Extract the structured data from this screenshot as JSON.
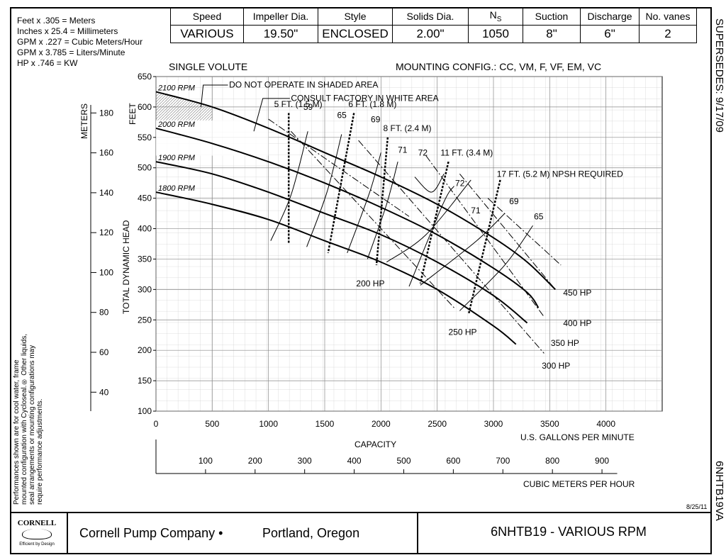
{
  "conversions": [
    "Feet x .305 = Meters",
    "Inches x 25.4 = Millimeters",
    "GPM x .227 = Cubic Meters/Hour",
    "GPM x 3.785 = Liters/Minute",
    "HP x .746 = KW"
  ],
  "spec": {
    "headers": [
      "Speed",
      "Impeller Dia.",
      "Style",
      "Solids Dia.",
      "NS",
      "Suction",
      "Discharge",
      "No. vanes"
    ],
    "values": [
      "VARIOUS",
      "19.50\"",
      "ENCLOSED",
      "2.00\"",
      "1050",
      "8\"",
      "6\"",
      "2"
    ]
  },
  "supersedes": "SUPERSEDES: 9/17/09",
  "model_code": "6NHTB19VA",
  "date": "8/25/11",
  "left_note": "Performances shown are for cool water, frame mounted configuration with Cycloseal.® Other liquids, seal arrangements or mounting configurations may require performance adjustments.",
  "footer": {
    "logo_text": "CORNELL",
    "tagline": "Efficient by Design",
    "company": "Cornell Pump Company •",
    "location": "Portland, Oregon",
    "title": "6NHTB19 - VARIOUS RPM"
  },
  "chart_data": {
    "type": "line",
    "volute": "SINGLE VOLUTE",
    "mounting": "MOUNTING CONFIG.:  CC,  VM,  F,  VF,  EM,  VC",
    "notes": [
      "DO NOT OPERATE IN SHADED AREA",
      "CONSULT FACTORY IN WHITE AREA"
    ],
    "ylabel": "TOTAL DYNAMIC HEAD",
    "y_unit": "FEET",
    "y_alt_unit": "METERS",
    "xlabel": "U.S. GALLONS PER MINUTE",
    "capacity_label": "CAPACITY",
    "x_alt_label": "CUBIC METERS PER HOUR",
    "ylim": [
      100,
      650
    ],
    "xlim": [
      0,
      4500
    ],
    "y_ticks": [
      100,
      150,
      200,
      250,
      300,
      350,
      400,
      450,
      500,
      550,
      600,
      650
    ],
    "x_ticks": [
      0,
      500,
      1000,
      1500,
      2000,
      2500,
      3000,
      3500,
      4000
    ],
    "meter_ticks": [
      40,
      60,
      80,
      100,
      120,
      140,
      160,
      180
    ],
    "cmh_ticks": [
      100,
      200,
      300,
      400,
      500,
      600,
      700,
      800,
      900
    ],
    "grid": true,
    "rpm_curves": [
      {
        "name": "2100 RPM",
        "x": [
          0,
          500,
          1000,
          1500,
          2000,
          2500,
          3000,
          3300,
          3550
        ],
        "y": [
          625,
          600,
          565,
          525,
          485,
          440,
          385,
          345,
          300
        ]
      },
      {
        "name": "2000 RPM",
        "x": [
          0,
          500,
          1000,
          1500,
          2000,
          2500,
          3000,
          3300,
          3400
        ],
        "y": [
          565,
          540,
          510,
          475,
          435,
          390,
          335,
          295,
          270
        ]
      },
      {
        "name": "1900 RPM",
        "x": [
          0,
          500,
          1000,
          1500,
          2000,
          2500,
          3000,
          3300
        ],
        "y": [
          510,
          490,
          460,
          425,
          390,
          345,
          290,
          245
        ]
      },
      {
        "name": "1800 RPM",
        "x": [
          0,
          500,
          1000,
          1500,
          2000,
          2500,
          3000,
          3200
        ],
        "y": [
          460,
          440,
          415,
          380,
          345,
          300,
          240,
          210
        ]
      }
    ],
    "efficiency_labels": [
      "59",
      "65",
      "69",
      "71",
      "72",
      "72",
      "71",
      "69",
      "65"
    ],
    "npsh_labels": [
      "5 FT. (1.5 M)",
      "6 FT. (1.8 M)",
      "8 FT. (2.4 M)",
      "11 FT. (3.4 M)",
      "17 FT. (5.2 M) NPSH REQUIRED"
    ],
    "hp_labels": [
      "200 HP",
      "250 HP",
      "300 HP",
      "350 HP",
      "400 HP",
      "450 HP"
    ]
  }
}
